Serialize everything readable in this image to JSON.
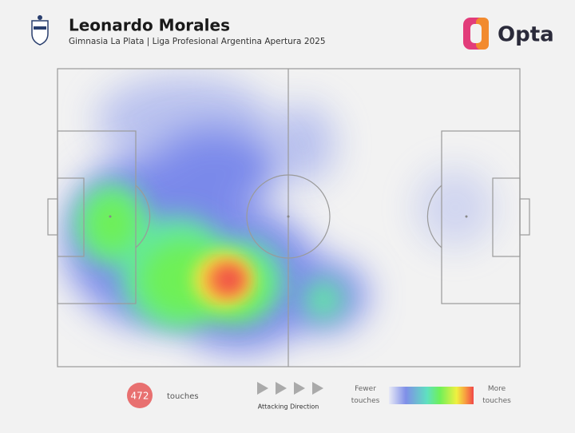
{
  "header": {
    "title": "Leonardo Morales",
    "subtitle": "Gimnasia La Plata | Liga Profesional Argentina Apertura 2025",
    "brand": "Opta"
  },
  "footer": {
    "touches_count": "472",
    "touches_label": "touches",
    "direction_label": "Attacking Direction",
    "legend_low": "Fewer touches",
    "legend_high": "More touches"
  }
}
